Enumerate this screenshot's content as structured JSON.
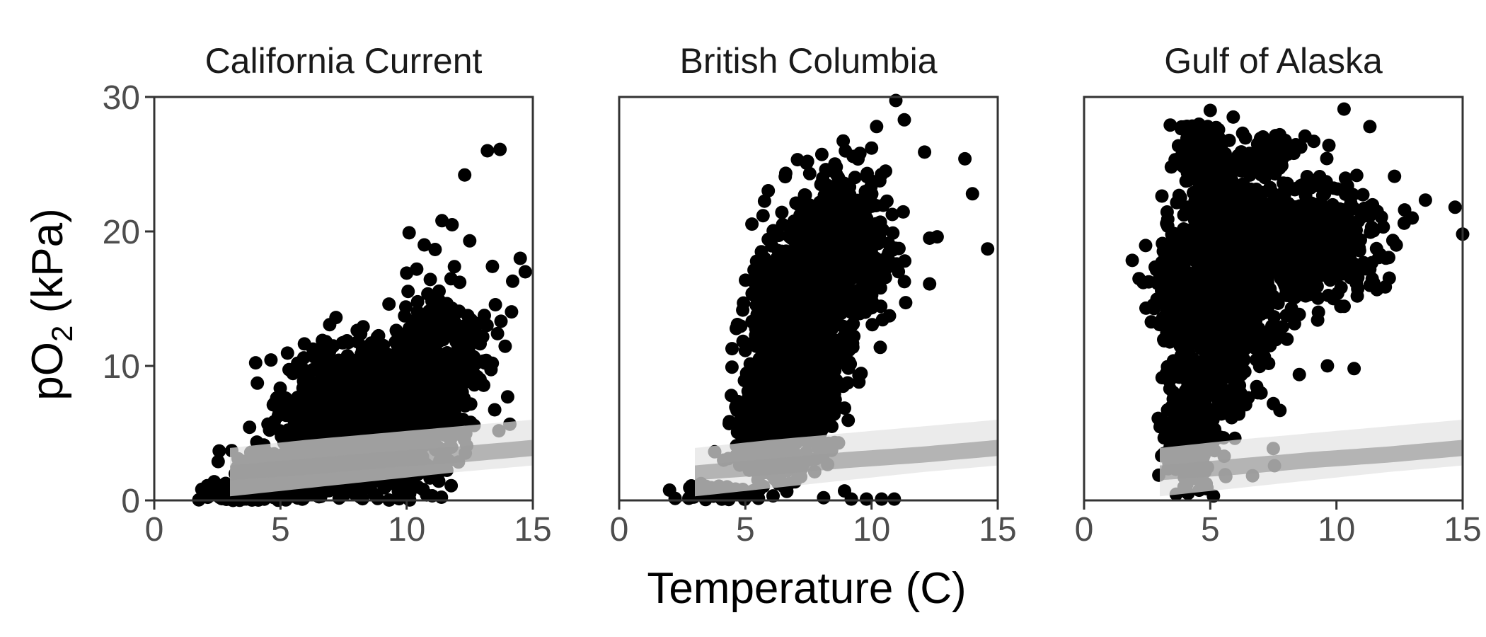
{
  "chart_data": {
    "type": "scatter",
    "xlabel": "Temperature (C)",
    "ylabel": {
      "base": "pO",
      "sub": "2",
      "unit": " (kPa)"
    },
    "xlim": [
      0,
      15
    ],
    "ylim": [
      0,
      30
    ],
    "x_ticks": [
      0,
      5,
      10,
      15
    ],
    "y_ticks": [
      0,
      10,
      20,
      30
    ],
    "point_color": "#000000",
    "band_outer_color": "#e3e3e3",
    "band_inner_color": "#9c9c9c",
    "band_x_range": [
      3,
      15
    ],
    "band_outer": {
      "lower": [
        [
          3,
          0.3
        ],
        [
          6,
          0.9
        ],
        [
          9,
          1.5
        ],
        [
          12,
          2.1
        ],
        [
          15,
          2.6
        ]
      ],
      "upper": [
        [
          3,
          3.9
        ],
        [
          6,
          4.5
        ],
        [
          9,
          5.0
        ],
        [
          12,
          5.5
        ],
        [
          15,
          6.0
        ]
      ]
    },
    "band_inner": {
      "lower": [
        [
          3,
          1.5
        ],
        [
          6,
          1.9
        ],
        [
          9,
          2.4
        ],
        [
          12,
          2.8
        ],
        [
          15,
          3.3
        ]
      ],
      "upper": [
        [
          3,
          2.6
        ],
        [
          6,
          3.1
        ],
        [
          9,
          3.6
        ],
        [
          12,
          4.0
        ],
        [
          15,
          4.5
        ]
      ]
    },
    "panels": [
      {
        "title": "California Current",
        "dense_regions": [
          {
            "cx": 7.6,
            "cy": 6.5,
            "sx": 1.2,
            "sy": 2.4,
            "n": 900
          },
          {
            "cx": 5.8,
            "cy": 2.0,
            "sx": 1.2,
            "sy": 1.0,
            "n": 450
          },
          {
            "cx": 9.6,
            "cy": 5.0,
            "sx": 1.1,
            "sy": 2.5,
            "n": 500
          },
          {
            "cx": 11.4,
            "cy": 10.5,
            "sx": 0.9,
            "sy": 2.5,
            "n": 320
          },
          {
            "cx": 4.0,
            "cy": 0.6,
            "sx": 0.8,
            "sy": 0.4,
            "n": 260
          }
        ],
        "outliers": [
          [
            13.2,
            26.0
          ],
          [
            13.7,
            26.1
          ],
          [
            12.3,
            24.2
          ],
          [
            11.8,
            20.5
          ],
          [
            11.4,
            20.8
          ],
          [
            12.5,
            19.3
          ],
          [
            10.1,
            19.9
          ],
          [
            10.7,
            19.0
          ],
          [
            14.5,
            18.0
          ],
          [
            14.7,
            17.0
          ],
          [
            13.4,
            17.4
          ],
          [
            14.2,
            16.3
          ],
          [
            13.6,
            12.4
          ],
          [
            10.0,
            16.9
          ],
          [
            10.4,
            17.2
          ],
          [
            12.1,
            8.9
          ],
          [
            11.0,
            5.4
          ],
          [
            7.2,
            13.6
          ],
          [
            9.3,
            14.6
          ],
          [
            8.6,
            11.7
          ]
        ]
      },
      {
        "title": "British Columbia",
        "dense_regions": [
          {
            "cx": 7.0,
            "cy": 11.0,
            "sx": 0.9,
            "sy": 4.0,
            "n": 1000
          },
          {
            "cx": 8.8,
            "cy": 18.5,
            "sx": 1.0,
            "sy": 3.0,
            "n": 550
          },
          {
            "cx": 5.9,
            "cy": 5.0,
            "sx": 0.6,
            "sy": 1.6,
            "n": 380
          },
          {
            "cx": 4.0,
            "cy": 0.6,
            "sx": 0.7,
            "sy": 0.3,
            "n": 90
          }
        ],
        "outliers": [
          [
            10.0,
            26.2
          ],
          [
            10.2,
            27.8
          ],
          [
            11.3,
            28.3
          ],
          [
            12.1,
            25.9
          ],
          [
            13.7,
            25.4
          ],
          [
            14.0,
            22.8
          ],
          [
            14.6,
            18.7
          ],
          [
            12.3,
            19.5
          ],
          [
            12.6,
            19.6
          ],
          [
            12.3,
            16.1
          ],
          [
            9.5,
            9.3
          ],
          [
            9.5,
            8.8
          ],
          [
            8.1,
            0.2
          ],
          [
            9.2,
            0.1
          ],
          [
            9.8,
            0.1
          ],
          [
            10.4,
            0.1
          ],
          [
            10.9,
            0.1
          ],
          [
            5.7,
            16.3
          ],
          [
            6.4,
            16.2
          ],
          [
            7.8,
            3.1
          ]
        ]
      },
      {
        "title": "Gulf of Alaska",
        "dense_regions": [
          {
            "cx": 5.4,
            "cy": 15.0,
            "sx": 1.0,
            "sy": 4.2,
            "n": 1000
          },
          {
            "cx": 8.0,
            "cy": 19.5,
            "sx": 1.8,
            "sy": 2.2,
            "n": 650
          },
          {
            "cx": 4.6,
            "cy": 25.5,
            "sx": 0.5,
            "sy": 1.2,
            "n": 130
          },
          {
            "cx": 7.2,
            "cy": 26.0,
            "sx": 0.6,
            "sy": 0.7,
            "n": 60
          },
          {
            "cx": 4.1,
            "cy": 5.0,
            "sx": 0.5,
            "sy": 2.0,
            "n": 240
          },
          {
            "cx": 3.5,
            "cy": 16.0,
            "sx": 0.4,
            "sy": 2.3,
            "n": 80
          }
        ],
        "outliers": [
          [
            10.3,
            29.1
          ],
          [
            5.0,
            29.0
          ],
          [
            4.9,
            27.8
          ],
          [
            14.7,
            21.8
          ],
          [
            15.0,
            19.8
          ],
          [
            10.7,
            9.8
          ],
          [
            9.1,
            26.7
          ],
          [
            9.7,
            26.4
          ],
          [
            12.3,
            24.1
          ],
          [
            12.7,
            21.6
          ],
          [
            13.0,
            21.0
          ],
          [
            3.3,
            17.0
          ],
          [
            3.4,
            15.3
          ],
          [
            3.4,
            18.7
          ]
        ]
      }
    ]
  }
}
